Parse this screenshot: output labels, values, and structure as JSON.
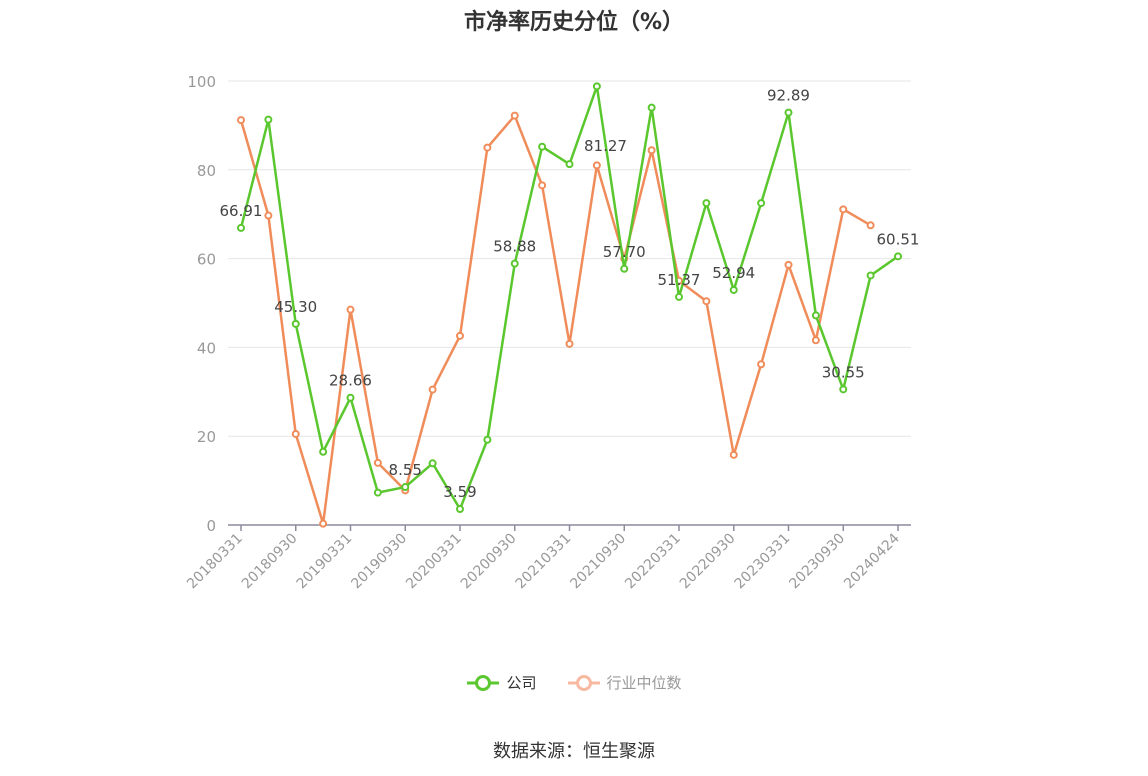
{
  "chart_data": {
    "type": "line",
    "title": "市净率历史分位（%）",
    "xlabel": "",
    "ylabel": "",
    "ylim": [
      0,
      100
    ],
    "yticks": [
      0,
      20,
      40,
      60,
      80,
      100
    ],
    "grid": true,
    "legend_position": "bottom",
    "x": [
      "20180331",
      "20180630",
      "20180930",
      "20181231",
      "20190331",
      "20190630",
      "20190930",
      "20191231",
      "20200331",
      "20200630",
      "20200930",
      "20201231",
      "20210331",
      "20210630",
      "20210930",
      "20211231",
      "20220331",
      "20220630",
      "20220930",
      "20221231",
      "20230331",
      "20230630",
      "20230930",
      "20231231",
      "20240424"
    ],
    "xtick_labels": [
      "20180331",
      "20180930",
      "20190331",
      "20190930",
      "20200331",
      "20200930",
      "20210331",
      "20210930",
      "20220331",
      "20220930",
      "20230331",
      "20230930",
      "20240424"
    ],
    "xtick_indices": [
      0,
      2,
      4,
      6,
      8,
      10,
      12,
      14,
      16,
      18,
      20,
      22,
      24
    ],
    "series": [
      {
        "name": "公司",
        "color": "#5ac72e",
        "values": [
          66.91,
          91.3,
          45.3,
          16.5,
          28.66,
          7.3,
          8.55,
          13.9,
          3.59,
          19.2,
          58.88,
          85.2,
          81.27,
          98.8,
          57.7,
          94.0,
          51.37,
          72.5,
          52.94,
          72.5,
          92.89,
          47.2,
          30.55,
          56.2,
          60.51
        ],
        "labels": {
          "0": "66.91",
          "2": "45.30",
          "4": "28.66",
          "6": "8.55",
          "8": "3.59",
          "10": "58.88",
          "12": "81.27",
          "14": "57.70",
          "16": "51.37",
          "18": "52.94",
          "20": "92.89",
          "22": "30.55",
          "24": "60.51"
        }
      },
      {
        "name": "行业中位数",
        "color": "#f08c5a",
        "values": [
          91.2,
          69.7,
          20.5,
          0.3,
          48.5,
          14.0,
          7.8,
          30.5,
          42.6,
          85.0,
          92.2,
          76.5,
          40.8,
          81.0,
          60.0,
          84.4,
          55.0,
          50.4,
          15.8,
          36.2,
          58.6,
          41.6,
          71.1,
          67.5,
          null
        ]
      }
    ]
  },
  "source_text": "数据来源：恒生聚源"
}
